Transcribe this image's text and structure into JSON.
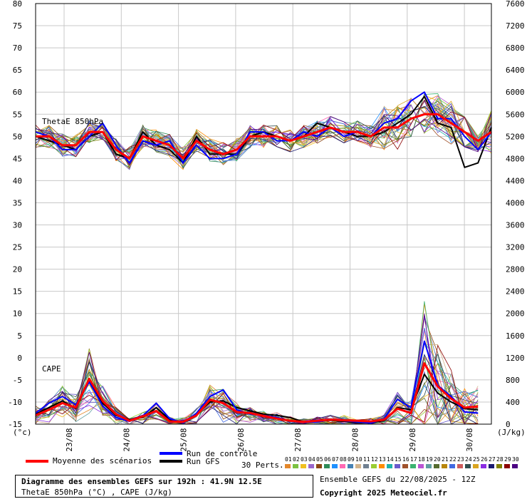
{
  "chart_data": {
    "type": "line",
    "left_axis_unit": "(°c)",
    "right_axis_unit": "(J/kg)",
    "left_ticks": [
      80,
      75,
      70,
      65,
      60,
      55,
      50,
      45,
      40,
      35,
      30,
      25,
      20,
      15,
      10,
      5,
      0,
      -5,
      -10,
      -15
    ],
    "right_ticks": [
      7600,
      7200,
      6800,
      6400,
      6000,
      5600,
      5200,
      4800,
      4400,
      4000,
      3600,
      3200,
      2800,
      2400,
      2000,
      1600,
      1200,
      800,
      400,
      0
    ],
    "ylim_left": [
      -15,
      80
    ],
    "ylim_right": [
      0,
      7600
    ],
    "x_tick_labels": [
      "23/08",
      "24/08",
      "25/08",
      "26/08",
      "27/08",
      "28/08",
      "29/08",
      "30/08"
    ],
    "series_labels": {
      "theta": "ThetaE 850hPa",
      "cape": "CAPE"
    },
    "theta_mean": [
      50,
      50,
      48,
      48,
      51,
      51,
      47,
      45,
      50,
      49,
      48,
      45,
      49,
      47,
      46,
      47,
      50,
      50,
      50,
      49,
      50,
      51,
      52,
      51,
      51,
      50,
      52,
      52,
      54,
      55,
      55,
      53,
      51,
      49,
      51
    ],
    "theta_control": [
      51,
      50,
      47,
      47,
      50,
      53,
      48,
      44,
      49,
      48,
      49,
      44,
      48,
      45,
      45,
      46,
      51,
      51,
      49,
      49,
      51,
      50,
      52,
      50,
      51,
      50,
      53,
      54,
      58,
      60,
      54,
      54,
      50,
      47,
      51
    ],
    "theta_gfs": [
      50,
      49,
      48,
      47,
      50,
      51,
      46,
      45,
      51,
      48,
      47,
      44,
      50,
      46,
      46,
      46,
      50,
      51,
      50,
      49,
      50,
      53,
      52,
      51,
      50,
      50,
      51,
      53,
      55,
      59,
      53,
      52,
      43,
      44,
      52
    ],
    "cape_mean": [
      160,
      260,
      380,
      300,
      820,
      420,
      180,
      60,
      140,
      240,
      50,
      40,
      160,
      440,
      380,
      220,
      200,
      150,
      100,
      60,
      40,
      60,
      80,
      70,
      60,
      50,
      80,
      280,
      200,
      1100,
      680,
      460,
      300,
      320
    ],
    "cape_control": [
      200,
      380,
      500,
      350,
      760,
      330,
      120,
      50,
      150,
      380,
      100,
      20,
      200,
      500,
      620,
      260,
      180,
      160,
      120,
      60,
      30,
      40,
      80,
      60,
      40,
      20,
      100,
      450,
      300,
      1500,
      700,
      500,
      220,
      200
    ],
    "cape_gfs": [
      180,
      300,
      420,
      280,
      800,
      380,
      160,
      80,
      120,
      300,
      80,
      30,
      180,
      400,
      420,
      300,
      240,
      180,
      160,
      120,
      40,
      60,
      70,
      50,
      30,
      30,
      60,
      300,
      260,
      900,
      560,
      400,
      280,
      260
    ]
  },
  "legend": {
    "mean_label": "Moyenne des scénarios",
    "control_label": "Run de contrôle",
    "gfs_label": "Run GFS",
    "perts_label": "30 Perts.",
    "mean_color": "#ff0000",
    "control_color": "#0000ff",
    "gfs_color": "#000000",
    "pert_numbers": [
      "01",
      "02",
      "03",
      "04",
      "05",
      "06",
      "07",
      "08",
      "09",
      "10",
      "11",
      "12",
      "13",
      "14",
      "15",
      "16",
      "17",
      "18",
      "19",
      "20",
      "21",
      "22",
      "23",
      "24",
      "25",
      "26",
      "27",
      "28",
      "29",
      "30"
    ],
    "pert_colors": [
      "#e4882b",
      "#7cc242",
      "#f0c020",
      "#9966cc",
      "#8b4513",
      "#2e8b57",
      "#1e90ff",
      "#ff69b4",
      "#4682b4",
      "#d2b48c",
      "#708090",
      "#9acd32",
      "#ff8c00",
      "#20b2aa",
      "#6a5acd",
      "#a0522d",
      "#3cb371",
      "#ba55d3",
      "#5f9ea0",
      "#556b2f",
      "#b8860b",
      "#4169e1",
      "#cd5c5c",
      "#2f4f4f",
      "#daa520",
      "#8a2be2",
      "#191970",
      "#808000",
      "#8b0000",
      "#4b0082"
    ]
  },
  "footer": {
    "title": "Diagramme des ensembles GEFS sur 192h : 41.9N 12.5E",
    "subtitle": "ThetaE 850hPa (°C) , CAPE (J/kg)",
    "run_info": "Ensemble GEFS du 22/08/2025 - 12Z",
    "copyright": "Copyright 2025 Meteociel.fr"
  }
}
